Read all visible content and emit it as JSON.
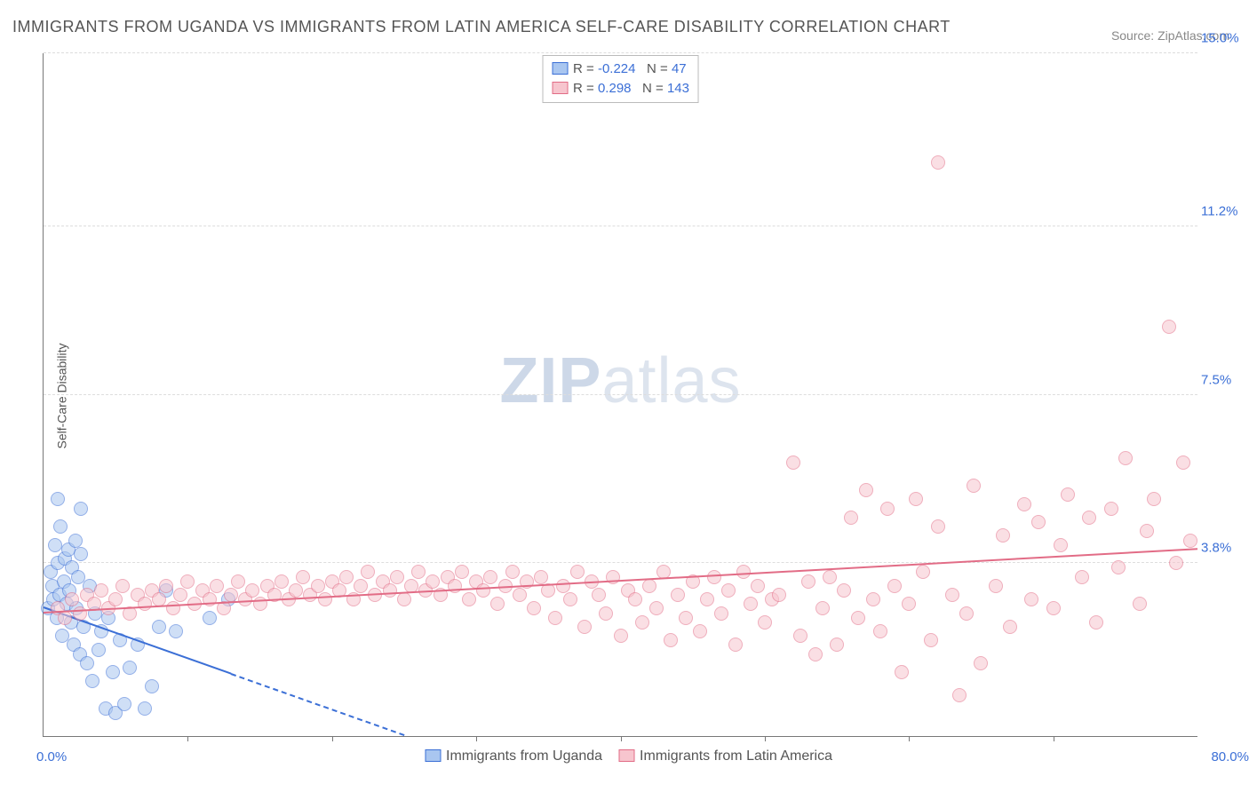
{
  "title": "IMMIGRANTS FROM UGANDA VS IMMIGRANTS FROM LATIN AMERICA SELF-CARE DISABILITY CORRELATION CHART",
  "source_label": "Source: ZipAtlas.com",
  "y_axis_label": "Self-Care Disability",
  "watermark": {
    "bold": "ZIP",
    "rest": "atlas"
  },
  "chart": {
    "type": "scatter",
    "xlim": [
      0.0,
      80.0
    ],
    "ylim": [
      0.0,
      15.0
    ],
    "x_tick_step": 10.0,
    "y_ticks": [
      3.8,
      7.5,
      11.2,
      15.0
    ],
    "y_tick_labels": [
      "3.8%",
      "7.5%",
      "11.2%",
      "15.0%"
    ],
    "x_min_label": "0.0%",
    "x_max_label": "80.0%",
    "background_color": "#ffffff",
    "grid_color": "#dddddd",
    "axis_color": "#777777",
    "marker_radius": 8,
    "marker_opacity": 0.55,
    "trend_line_width": 2,
    "series": [
      {
        "id": "uganda",
        "label": "Immigrants from Uganda",
        "color_fill": "#a9c6f0",
        "color_stroke": "#3b6fd6",
        "R": "-0.224",
        "N": "47",
        "trend": {
          "x1": 0,
          "y1": 2.8,
          "x2": 25,
          "y2": 0.0,
          "solid_until_x": 13
        },
        "points": [
          [
            0.3,
            2.8
          ],
          [
            0.5,
            3.6
          ],
          [
            0.6,
            3.3
          ],
          [
            0.7,
            3.0
          ],
          [
            0.8,
            4.2
          ],
          [
            0.9,
            2.6
          ],
          [
            1.0,
            3.8
          ],
          [
            1.1,
            3.1
          ],
          [
            1.2,
            4.6
          ],
          [
            1.3,
            2.2
          ],
          [
            1.4,
            3.4
          ],
          [
            1.5,
            3.9
          ],
          [
            1.6,
            2.9
          ],
          [
            1.7,
            4.1
          ],
          [
            1.8,
            3.2
          ],
          [
            1.9,
            2.5
          ],
          [
            2.0,
            3.7
          ],
          [
            2.1,
            2.0
          ],
          [
            2.2,
            4.3
          ],
          [
            2.3,
            2.8
          ],
          [
            2.4,
            3.5
          ],
          [
            2.5,
            1.8
          ],
          [
            2.6,
            4.0
          ],
          [
            2.8,
            2.4
          ],
          [
            3.0,
            1.6
          ],
          [
            3.2,
            3.3
          ],
          [
            3.4,
            1.2
          ],
          [
            3.6,
            2.7
          ],
          [
            3.8,
            1.9
          ],
          [
            4.0,
            2.3
          ],
          [
            4.3,
            0.6
          ],
          [
            4.5,
            2.6
          ],
          [
            4.8,
            1.4
          ],
          [
            5.0,
            0.5
          ],
          [
            5.3,
            2.1
          ],
          [
            5.6,
            0.7
          ],
          [
            6.0,
            1.5
          ],
          [
            6.5,
            2.0
          ],
          [
            7.0,
            0.6
          ],
          [
            7.5,
            1.1
          ],
          [
            8.0,
            2.4
          ],
          [
            8.5,
            3.2
          ],
          [
            9.2,
            2.3
          ],
          [
            1.0,
            5.2
          ],
          [
            2.6,
            5.0
          ],
          [
            11.5,
            2.6
          ],
          [
            12.8,
            3.0
          ]
        ]
      },
      {
        "id": "latin_america",
        "label": "Immigrants from Latin America",
        "color_fill": "#f7c5ce",
        "color_stroke": "#e26c86",
        "R": "0.298",
        "N": "143",
        "trend": {
          "x1": 0,
          "y1": 2.7,
          "x2": 80,
          "y2": 4.1,
          "solid_until_x": 80
        },
        "points": [
          [
            1,
            2.8
          ],
          [
            1.5,
            2.6
          ],
          [
            2,
            3.0
          ],
          [
            2.5,
            2.7
          ],
          [
            3,
            3.1
          ],
          [
            3.5,
            2.9
          ],
          [
            4,
            3.2
          ],
          [
            4.5,
            2.8
          ],
          [
            5,
            3.0
          ],
          [
            5.5,
            3.3
          ],
          [
            6,
            2.7
          ],
          [
            6.5,
            3.1
          ],
          [
            7,
            2.9
          ],
          [
            7.5,
            3.2
          ],
          [
            8,
            3.0
          ],
          [
            8.5,
            3.3
          ],
          [
            9,
            2.8
          ],
          [
            9.5,
            3.1
          ],
          [
            10,
            3.4
          ],
          [
            10.5,
            2.9
          ],
          [
            11,
            3.2
          ],
          [
            11.5,
            3.0
          ],
          [
            12,
            3.3
          ],
          [
            12.5,
            2.8
          ],
          [
            13,
            3.1
          ],
          [
            13.5,
            3.4
          ],
          [
            14,
            3.0
          ],
          [
            14.5,
            3.2
          ],
          [
            15,
            2.9
          ],
          [
            15.5,
            3.3
          ],
          [
            16,
            3.1
          ],
          [
            16.5,
            3.4
          ],
          [
            17,
            3.0
          ],
          [
            17.5,
            3.2
          ],
          [
            18,
            3.5
          ],
          [
            18.5,
            3.1
          ],
          [
            19,
            3.3
          ],
          [
            19.5,
            3.0
          ],
          [
            20,
            3.4
          ],
          [
            20.5,
            3.2
          ],
          [
            21,
            3.5
          ],
          [
            21.5,
            3.0
          ],
          [
            22,
            3.3
          ],
          [
            22.5,
            3.6
          ],
          [
            23,
            3.1
          ],
          [
            23.5,
            3.4
          ],
          [
            24,
            3.2
          ],
          [
            24.5,
            3.5
          ],
          [
            25,
            3.0
          ],
          [
            25.5,
            3.3
          ],
          [
            26,
            3.6
          ],
          [
            26.5,
            3.2
          ],
          [
            27,
            3.4
          ],
          [
            27.5,
            3.1
          ],
          [
            28,
            3.5
          ],
          [
            28.5,
            3.3
          ],
          [
            29,
            3.6
          ],
          [
            29.5,
            3.0
          ],
          [
            30,
            3.4
          ],
          [
            30.5,
            3.2
          ],
          [
            31,
            3.5
          ],
          [
            31.5,
            2.9
          ],
          [
            32,
            3.3
          ],
          [
            32.5,
            3.6
          ],
          [
            33,
            3.1
          ],
          [
            33.5,
            3.4
          ],
          [
            34,
            2.8
          ],
          [
            34.5,
            3.5
          ],
          [
            35,
            3.2
          ],
          [
            35.5,
            2.6
          ],
          [
            36,
            3.3
          ],
          [
            36.5,
            3.0
          ],
          [
            37,
            3.6
          ],
          [
            37.5,
            2.4
          ],
          [
            38,
            3.4
          ],
          [
            38.5,
            3.1
          ],
          [
            39,
            2.7
          ],
          [
            39.5,
            3.5
          ],
          [
            40,
            2.2
          ],
          [
            40.5,
            3.2
          ],
          [
            41,
            3.0
          ],
          [
            41.5,
            2.5
          ],
          [
            42,
            3.3
          ],
          [
            42.5,
            2.8
          ],
          [
            43,
            3.6
          ],
          [
            43.5,
            2.1
          ],
          [
            44,
            3.1
          ],
          [
            44.5,
            2.6
          ],
          [
            45,
            3.4
          ],
          [
            45.5,
            2.3
          ],
          [
            46,
            3.0
          ],
          [
            46.5,
            3.5
          ],
          [
            47,
            2.7
          ],
          [
            47.5,
            3.2
          ],
          [
            48,
            2.0
          ],
          [
            48.5,
            3.6
          ],
          [
            49,
            2.9
          ],
          [
            49.5,
            3.3
          ],
          [
            50,
            2.5
          ],
          [
            50.5,
            3.0
          ],
          [
            51,
            3.1
          ],
          [
            52,
            6.0
          ],
          [
            52.5,
            2.2
          ],
          [
            53,
            3.4
          ],
          [
            53.5,
            1.8
          ],
          [
            54,
            2.8
          ],
          [
            54.5,
            3.5
          ],
          [
            55,
            2.0
          ],
          [
            55.5,
            3.2
          ],
          [
            56,
            4.8
          ],
          [
            56.5,
            2.6
          ],
          [
            57,
            5.4
          ],
          [
            57.5,
            3.0
          ],
          [
            58,
            2.3
          ],
          [
            58.5,
            5.0
          ],
          [
            59,
            3.3
          ],
          [
            59.5,
            1.4
          ],
          [
            60,
            2.9
          ],
          [
            60.5,
            5.2
          ],
          [
            61,
            3.6
          ],
          [
            61.5,
            2.1
          ],
          [
            62,
            4.6
          ],
          [
            63,
            3.1
          ],
          [
            63.5,
            0.9
          ],
          [
            62,
            12.6
          ],
          [
            64,
            2.7
          ],
          [
            64.5,
            5.5
          ],
          [
            65,
            1.6
          ],
          [
            66,
            3.3
          ],
          [
            66.5,
            4.4
          ],
          [
            67,
            2.4
          ],
          [
            68,
            5.1
          ],
          [
            68.5,
            3.0
          ],
          [
            69,
            4.7
          ],
          [
            70,
            2.8
          ],
          [
            70.5,
            4.2
          ],
          [
            71,
            5.3
          ],
          [
            72,
            3.5
          ],
          [
            72.5,
            4.8
          ],
          [
            73,
            2.5
          ],
          [
            74,
            5.0
          ],
          [
            74.5,
            3.7
          ],
          [
            75,
            6.1
          ],
          [
            76,
            2.9
          ],
          [
            76.5,
            4.5
          ],
          [
            77,
            5.2
          ],
          [
            78,
            9.0
          ],
          [
            78.5,
            3.8
          ],
          [
            79,
            6.0
          ],
          [
            79.5,
            4.3
          ]
        ]
      }
    ]
  },
  "legend_bottom": [
    {
      "series": "uganda",
      "label": "Immigrants from Uganda"
    },
    {
      "series": "latin_america",
      "label": "Immigrants from Latin America"
    }
  ]
}
